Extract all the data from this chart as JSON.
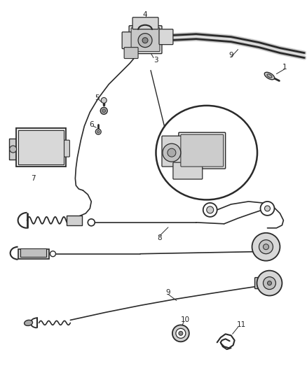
{
  "bg_color": "#ffffff",
  "fig_width": 4.38,
  "fig_height": 5.33,
  "dpi": 100,
  "line_color": "#2a2a2a",
  "label_color": "#222222",
  "label_fs": 7.5
}
